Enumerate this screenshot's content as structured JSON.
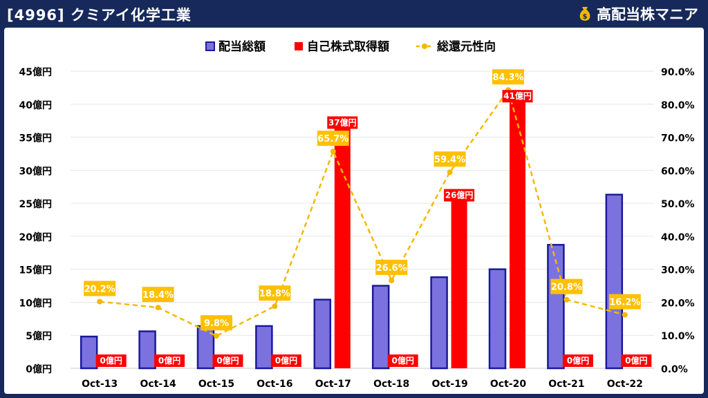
{
  "header": {
    "title": "[4996] クミアイ化学工業",
    "brand": "高配当株マニア",
    "brand_icon": "money-bag-icon"
  },
  "colors": {
    "background": "#16295a",
    "dividend_fill": "#7b72e0",
    "dividend_stroke": "#1a1a9a",
    "buyback_fill": "#ff0000",
    "ratio_line": "#f5b800",
    "ratio_label_bg": "#ffc000"
  },
  "chart_data": {
    "type": "bar",
    "categories": [
      "Oct-13",
      "Oct-14",
      "Oct-15",
      "Oct-16",
      "Oct-17",
      "Oct-18",
      "Oct-19",
      "Oct-20",
      "Oct-21",
      "Oct-22"
    ],
    "series": [
      {
        "name": "配当総額",
        "type": "bar",
        "axis": "left",
        "values": [
          4.8,
          5.6,
          6.4,
          6.4,
          10.4,
          12.5,
          13.8,
          15.0,
          18.7,
          26.3
        ]
      },
      {
        "name": "自己株式取得額",
        "type": "bar",
        "axis": "left",
        "values": [
          0,
          0,
          0,
          0,
          37,
          0,
          26,
          41,
          0,
          0
        ],
        "labels": [
          "0億円",
          "0億円",
          "0億円",
          "0億円",
          "37億円",
          "0億円",
          "26億円",
          "41億円",
          "0億円",
          "0億円"
        ]
      },
      {
        "name": "総還元性向",
        "type": "line",
        "axis": "right",
        "values": [
          20.2,
          18.4,
          9.8,
          18.8,
          65.7,
          26.6,
          59.4,
          84.3,
          20.8,
          16.2
        ],
        "labels": [
          "20.2%",
          "18.4%",
          "9.8%",
          "18.8%",
          "65.7%",
          "26.6%",
          "59.4%",
          "84.3%",
          "20.8%",
          "16.2%"
        ]
      }
    ],
    "y_left": {
      "min": 0,
      "max": 45,
      "step": 5,
      "tick_labels": [
        "0億円",
        "5億円",
        "10億円",
        "15億円",
        "20億円",
        "25億円",
        "30億円",
        "35億円",
        "40億円",
        "45億円"
      ]
    },
    "y_right": {
      "min": 0,
      "max": 90,
      "step": 10,
      "tick_labels": [
        "0.0%",
        "10.0%",
        "20.0%",
        "30.0%",
        "40.0%",
        "50.0%",
        "60.0%",
        "70.0%",
        "80.0%",
        "90.0%"
      ]
    },
    "grid": true,
    "legend": "top-center"
  }
}
